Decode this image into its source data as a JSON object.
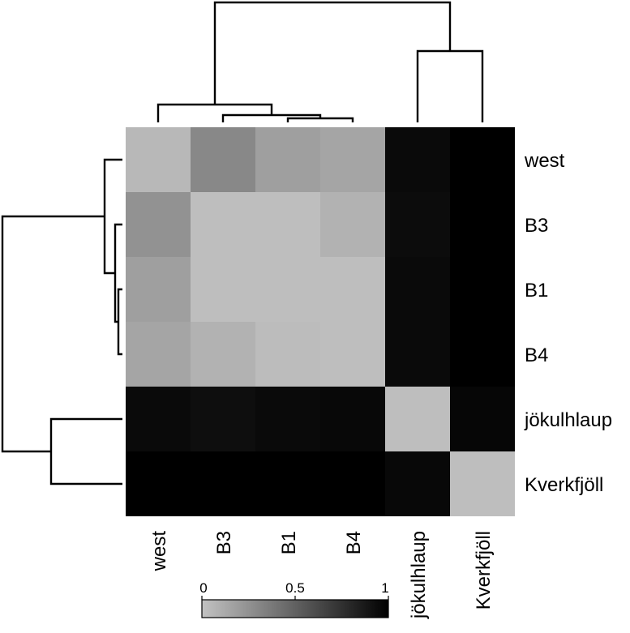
{
  "chart_data": {
    "type": "heatmap",
    "rows": [
      "west",
      "B3",
      "B1",
      "B4",
      "jökulhlaup",
      "Kverkfjöll"
    ],
    "columns": [
      "west",
      "B3",
      "B1",
      "B4",
      "jökulhlaup",
      "Kverkfjöll"
    ],
    "values": [
      [
        0.05,
        0.3,
        0.18,
        0.15,
        0.95,
        1.0
      ],
      [
        0.25,
        0.02,
        0.02,
        0.08,
        0.94,
        1.0
      ],
      [
        0.18,
        0.02,
        0.02,
        0.02,
        0.95,
        1.0
      ],
      [
        0.15,
        0.08,
        0.03,
        0.02,
        0.95,
        1.0
      ],
      [
        0.95,
        0.93,
        0.95,
        0.96,
        0.02,
        0.97
      ],
      [
        1.0,
        1.0,
        1.0,
        1.0,
        0.96,
        0.02
      ]
    ],
    "colorbar": {
      "min": 0,
      "max": 1,
      "ticks": [
        "0",
        "0.5",
        "1"
      ],
      "low_color": "#c2c2c2",
      "high_color": "#000000"
    },
    "column_dendrogram": true,
    "row_dendrogram": true,
    "legend": "bottom"
  }
}
